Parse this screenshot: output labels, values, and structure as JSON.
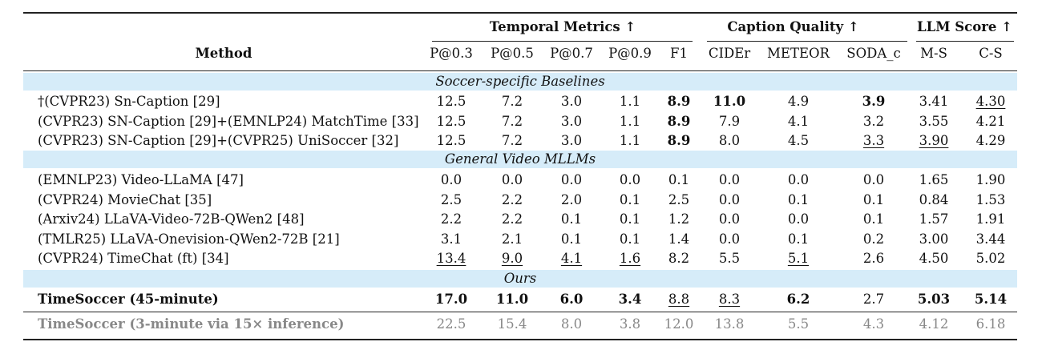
{
  "table": {
    "header": {
      "method": "Method",
      "groups": [
        "Temporal Metrics ↑",
        "Caption Quality ↑",
        "LLM Score ↑"
      ],
      "columns": [
        "P@0.3",
        "P@0.5",
        "P@0.7",
        "P@0.9",
        "F1",
        "CIDEr",
        "METEOR",
        "SODA_c",
        "M-S",
        "C-S"
      ]
    },
    "sections": [
      {
        "title": "Soccer-specific Baselines",
        "rows": [
          {
            "method": "†(CVPR23) Sn-Caption [29]",
            "values": [
              "12.5",
              "7.2",
              "3.0",
              "1.1",
              "8.9",
              "11.0",
              "4.9",
              "3.9",
              "3.41",
              "4.30"
            ],
            "bold": [
              4,
              5,
              7
            ],
            "underline": [
              9
            ]
          },
          {
            "method": "(CVPR23) SN-Caption [29]+(EMNLP24) MatchTime [33]",
            "values": [
              "12.5",
              "7.2",
              "3.0",
              "1.1",
              "8.9",
              "7.9",
              "4.1",
              "3.2",
              "3.55",
              "4.21"
            ],
            "bold": [
              4
            ],
            "underline": []
          },
          {
            "method": "(CVPR23) SN-Caption [29]+(CVPR25) UniSoccer [32]",
            "values": [
              "12.5",
              "7.2",
              "3.0",
              "1.1",
              "8.9",
              "8.0",
              "4.5",
              "3.3",
              "3.90",
              "4.29"
            ],
            "bold": [
              4
            ],
            "underline": [
              7,
              8
            ]
          }
        ]
      },
      {
        "title": "General Video MLLMs",
        "rows": [
          {
            "method": "(EMNLP23) Video-LLaMA [47]",
            "values": [
              "0.0",
              "0.0",
              "0.0",
              "0.0",
              "0.1",
              "0.0",
              "0.0",
              "0.0",
              "1.65",
              "1.90"
            ],
            "bold": [],
            "underline": []
          },
          {
            "method": "(CVPR24) MovieChat [35]",
            "values": [
              "2.5",
              "2.2",
              "2.0",
              "0.1",
              "2.5",
              "0.0",
              "0.1",
              "0.1",
              "0.84",
              "1.53"
            ],
            "bold": [],
            "underline": []
          },
          {
            "method": "(Arxiv24) LLaVA-Video-72B-QWen2 [48]",
            "values": [
              "2.2",
              "2.2",
              "0.1",
              "0.1",
              "1.2",
              "0.0",
              "0.0",
              "0.1",
              "1.57",
              "1.91"
            ],
            "bold": [],
            "underline": []
          },
          {
            "method": "(TMLR25) LLaVA-Onevision-QWen2-72B [21]",
            "values": [
              "3.1",
              "2.1",
              "0.1",
              "0.1",
              "1.4",
              "0.0",
              "0.1",
              "0.2",
              "3.00",
              "3.44"
            ],
            "bold": [],
            "underline": []
          },
          {
            "method": "(CVPR24) TimeChat (ft) [34]",
            "values": [
              "13.4",
              "9.0",
              "4.1",
              "1.6",
              "8.2",
              "5.5",
              "5.1",
              "2.6",
              "4.50",
              "5.02"
            ],
            "bold": [],
            "underline": [
              0,
              1,
              2,
              3,
              6
            ]
          }
        ]
      },
      {
        "title": "Ours",
        "rows": [
          {
            "method": "TimeSoccer (45-minute)",
            "values": [
              "17.0",
              "11.0",
              "6.0",
              "3.4",
              "8.8",
              "8.3",
              "6.2",
              "2.7",
              "5.03",
              "5.14"
            ],
            "bold": [
              0,
              1,
              2,
              3,
              6,
              8,
              9
            ],
            "underline": [
              4,
              5
            ],
            "method_bold": true
          }
        ]
      }
    ],
    "footer_row": {
      "method": "TimeSoccer (3-minute via 15× inference)",
      "values": [
        "22.5",
        "15.4",
        "8.0",
        "3.8",
        "12.0",
        "13.8",
        "5.5",
        "4.3",
        "4.12",
        "6.18"
      ]
    }
  }
}
